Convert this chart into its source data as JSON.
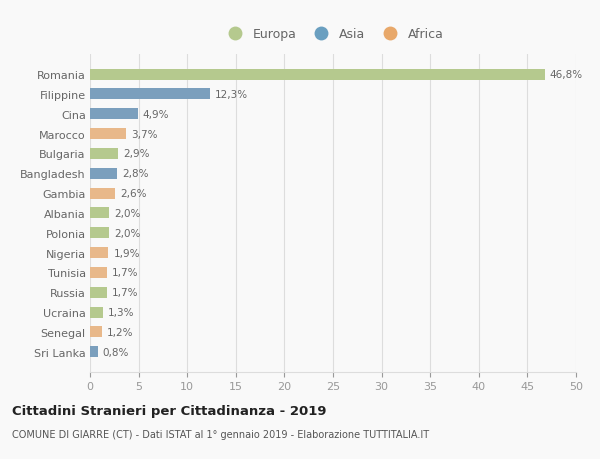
{
  "categories": [
    "Romania",
    "Filippine",
    "Cina",
    "Marocco",
    "Bulgaria",
    "Bangladesh",
    "Gambia",
    "Albania",
    "Polonia",
    "Nigeria",
    "Tunisia",
    "Russia",
    "Ucraina",
    "Senegal",
    "Sri Lanka"
  ],
  "values": [
    46.8,
    12.3,
    4.9,
    3.7,
    2.9,
    2.8,
    2.6,
    2.0,
    2.0,
    1.9,
    1.7,
    1.7,
    1.3,
    1.2,
    0.8
  ],
  "labels": [
    "46,8%",
    "12,3%",
    "4,9%",
    "3,7%",
    "2,9%",
    "2,8%",
    "2,6%",
    "2,0%",
    "2,0%",
    "1,9%",
    "1,7%",
    "1,7%",
    "1,3%",
    "1,2%",
    "0,8%"
  ],
  "continents": [
    "Europa",
    "Asia",
    "Asia",
    "Africa",
    "Europa",
    "Asia",
    "Africa",
    "Europa",
    "Europa",
    "Africa",
    "Africa",
    "Europa",
    "Europa",
    "Africa",
    "Asia"
  ],
  "bar_colors": {
    "Europa": "#b5c98e",
    "Asia": "#7b9fbd",
    "Africa": "#e8b88a"
  },
  "legend_colors": {
    "Europa": "#b5c98e",
    "Asia": "#6a9fc0",
    "Africa": "#e8a86a"
  },
  "xlim": [
    0,
    50
  ],
  "xticks": [
    0,
    5,
    10,
    15,
    20,
    25,
    30,
    35,
    40,
    45,
    50
  ],
  "title": "Cittadini Stranieri per Cittadinanza - 2019",
  "subtitle": "COMUNE DI GIARRE (CT) - Dati ISTAT al 1° gennaio 2019 - Elaborazione TUTTITALIA.IT",
  "bg_color": "#f9f9f9",
  "grid_color": "#dddddd",
  "bar_height": 0.55
}
